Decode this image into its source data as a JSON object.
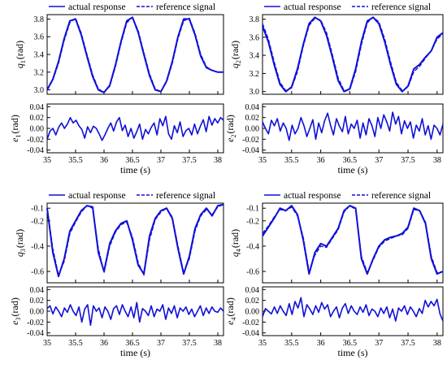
{
  "colors": {
    "series": "#1010d8",
    "frame": "#000000",
    "grid": "#d9d9d9"
  },
  "chart_data": [
    {
      "type": "line",
      "legend": [
        "actual response",
        "reference signal"
      ],
      "ylabel_sym": "q",
      "ylabel_sub": "1",
      "ylabel_unit": "(rad)",
      "xlim": [
        35,
        38.1
      ],
      "ylim": [
        2.95,
        3.85
      ],
      "yticks": [
        "3.0",
        "3.2",
        "3.4",
        "3.6",
        "3.8"
      ],
      "x": [
        35.0,
        35.1,
        35.2,
        35.3,
        35.4,
        35.5,
        35.6,
        35.7,
        35.8,
        35.9,
        36.0,
        36.1,
        36.2,
        36.3,
        36.4,
        36.5,
        36.6,
        36.7,
        36.8,
        36.9,
        37.0,
        37.1,
        37.2,
        37.3,
        37.4,
        37.5,
        37.6,
        37.7,
        37.8,
        37.9,
        38.0,
        38.1
      ],
      "series": [
        {
          "name": "actual response",
          "values": [
            3.0,
            3.12,
            3.32,
            3.58,
            3.78,
            3.8,
            3.62,
            3.38,
            3.15,
            3.0,
            2.97,
            3.05,
            3.28,
            3.55,
            3.78,
            3.82,
            3.65,
            3.4,
            3.16,
            3.0,
            2.98,
            3.1,
            3.32,
            3.6,
            3.8,
            3.8,
            3.62,
            3.38,
            3.25,
            3.22,
            3.2,
            3.2
          ]
        },
        {
          "name": "reference signal",
          "values": [
            3.0,
            3.11,
            3.3,
            3.56,
            3.76,
            3.81,
            3.64,
            3.4,
            3.17,
            3.01,
            2.97,
            3.04,
            3.26,
            3.53,
            3.76,
            3.82,
            3.67,
            3.42,
            3.18,
            3.01,
            2.98,
            3.09,
            3.3,
            3.58,
            3.78,
            3.81,
            3.64,
            3.4,
            3.26,
            3.22,
            3.2,
            3.2
          ]
        }
      ],
      "error": {
        "ylabel_sym": "e",
        "ylabel_sub": "1",
        "ylabel_unit": "(rad)",
        "ylim": [
          -0.045,
          0.045
        ],
        "yticks": [
          "0.04",
          "0.02",
          "0.00",
          "-0.02",
          "-0.04"
        ],
        "values": [
          -0.02,
          -0.005,
          0.0,
          -0.012,
          0.002,
          0.01,
          0.0,
          0.008,
          0.02,
          0.01,
          0.015,
          0.005,
          -0.002,
          -0.018,
          0.003,
          -0.008,
          0.004,
          0.0,
          -0.01,
          -0.022,
          -0.012,
          0.0,
          0.01,
          -0.005,
          0.012,
          0.02,
          -0.004,
          0.006,
          -0.015,
          0.0,
          -0.018,
          -0.006,
          0.008,
          -0.02,
          -0.002,
          -0.01,
          0.002,
          0.01,
          -0.012,
          0.018,
          0.005,
          0.022,
          -0.01,
          -0.02,
          0.005,
          -0.008,
          0.012,
          -0.015,
          -0.004,
          0.0,
          -0.012,
          0.008,
          -0.01,
          0.004,
          0.016,
          -0.006,
          0.022,
          0.006,
          0.018,
          0.01,
          0.02,
          0.015
        ]
      },
      "xticks": [
        "35",
        "35.5",
        "36",
        "36.5",
        "37",
        "37.5",
        "38"
      ],
      "xlabel": "time (s)"
    },
    {
      "type": "line",
      "legend": [
        "actual response",
        "reference signal"
      ],
      "ylabel_sym": "q",
      "ylabel_sub": "2",
      "ylabel_unit": "(rad)",
      "xlim": [
        35,
        38.1
      ],
      "ylim": [
        2.97,
        3.85
      ],
      "yticks": [
        "3.0",
        "3.2",
        "3.4",
        "3.6",
        "3.8"
      ],
      "x": [
        35.0,
        35.1,
        35.2,
        35.3,
        35.4,
        35.5,
        35.6,
        35.7,
        35.8,
        35.9,
        36.0,
        36.1,
        36.2,
        36.3,
        36.4,
        36.5,
        36.6,
        36.7,
        36.8,
        36.9,
        37.0,
        37.1,
        37.2,
        37.3,
        37.4,
        37.5,
        37.6,
        37.7,
        37.8,
        37.9,
        38.0,
        38.1
      ],
      "series": [
        {
          "name": "actual response",
          "values": [
            3.72,
            3.55,
            3.3,
            3.08,
            3.0,
            3.05,
            3.25,
            3.52,
            3.75,
            3.82,
            3.78,
            3.62,
            3.38,
            3.12,
            3.0,
            3.03,
            3.25,
            3.55,
            3.78,
            3.82,
            3.75,
            3.55,
            3.3,
            3.08,
            3.0,
            3.06,
            3.25,
            3.3,
            3.38,
            3.45,
            3.6,
            3.65
          ]
        },
        {
          "name": "reference signal",
          "values": [
            3.75,
            3.58,
            3.33,
            3.1,
            3.01,
            3.04,
            3.22,
            3.5,
            3.73,
            3.81,
            3.79,
            3.65,
            3.41,
            3.15,
            3.01,
            3.02,
            3.22,
            3.52,
            3.76,
            3.82,
            3.77,
            3.58,
            3.33,
            3.1,
            3.01,
            3.05,
            3.22,
            3.28,
            3.37,
            3.45,
            3.58,
            3.64
          ]
        }
      ],
      "error": {
        "ylabel_sym": "e",
        "ylabel_sub": "2",
        "ylabel_unit": "(rad)",
        "ylim": [
          -0.045,
          0.045
        ],
        "yticks": [
          "0.04",
          "0.02",
          "0.00",
          "-0.02",
          "-0.04"
        ],
        "values": [
          0.012,
          0.0,
          -0.01,
          0.015,
          0.005,
          0.018,
          -0.005,
          0.01,
          0.0,
          -0.022,
          0.006,
          -0.01,
          0.0,
          0.02,
          0.005,
          -0.015,
          0.0,
          0.016,
          -0.02,
          0.01,
          -0.008,
          0.014,
          0.028,
          0.006,
          -0.012,
          0.018,
          0.004,
          -0.006,
          0.022,
          -0.01,
          0.008,
          0.0,
          0.015,
          -0.018,
          0.01,
          -0.012,
          0.018,
          0.005,
          -0.015,
          0.02,
          0.0,
          0.025,
          0.012,
          -0.005,
          0.03,
          0.008,
          0.022,
          -0.01,
          0.014,
          0.0,
          0.012,
          -0.018,
          0.006,
          -0.005,
          0.018,
          -0.012,
          0.005,
          -0.02,
          0.006,
          0.0,
          -0.012,
          0.008
        ]
      },
      "xticks": [
        "35",
        "35.5",
        "36",
        "36.5",
        "37",
        "37.5",
        "38"
      ],
      "xlabel": "time (s)"
    },
    {
      "type": "line",
      "legend": [
        "actual response",
        "reference signal"
      ],
      "ylabel_sym": "q",
      "ylabel_sub": "3",
      "ylabel_unit": "(rad)",
      "xlim": [
        35,
        38.1
      ],
      "ylim": [
        -0.69,
        -0.06
      ],
      "yticks": [
        "-0.1",
        "-0.2",
        "-0.4",
        "-0.6"
      ],
      "ytickvals": [
        -0.1,
        -0.2,
        -0.4,
        -0.6
      ],
      "x": [
        35.0,
        35.1,
        35.2,
        35.3,
        35.4,
        35.5,
        35.6,
        35.7,
        35.8,
        35.9,
        36.0,
        36.1,
        36.2,
        36.3,
        36.4,
        36.5,
        36.6,
        36.7,
        36.8,
        36.9,
        37.0,
        37.1,
        37.2,
        37.3,
        37.4,
        37.5,
        37.6,
        37.7,
        37.8,
        37.9,
        38.0,
        38.1
      ],
      "series": [
        {
          "name": "actual response",
          "values": [
            -0.1,
            -0.45,
            -0.64,
            -0.5,
            -0.28,
            -0.2,
            -0.12,
            -0.08,
            -0.09,
            -0.45,
            -0.6,
            -0.38,
            -0.28,
            -0.22,
            -0.2,
            -0.35,
            -0.55,
            -0.62,
            -0.32,
            -0.18,
            -0.12,
            -0.1,
            -0.18,
            -0.42,
            -0.62,
            -0.48,
            -0.26,
            -0.15,
            -0.1,
            -0.16,
            -0.08,
            -0.07
          ]
        },
        {
          "name": "reference signal",
          "values": [
            -0.1,
            -0.42,
            -0.63,
            -0.52,
            -0.3,
            -0.21,
            -0.13,
            -0.08,
            -0.1,
            -0.42,
            -0.61,
            -0.4,
            -0.29,
            -0.23,
            -0.21,
            -0.33,
            -0.53,
            -0.63,
            -0.35,
            -0.19,
            -0.13,
            -0.1,
            -0.17,
            -0.4,
            -0.61,
            -0.5,
            -0.28,
            -0.16,
            -0.11,
            -0.15,
            -0.09,
            -0.07
          ]
        }
      ],
      "error": {
        "ylabel_sym": "e",
        "ylabel_sub": "3",
        "ylabel_unit": "(rad)",
        "ylim": [
          -0.045,
          0.045
        ],
        "yticks": [
          "0.04",
          "0.02",
          "0.00",
          "-0.02",
          "-0.04"
        ],
        "values": [
          0.005,
          0.01,
          -0.005,
          0.008,
          0.0,
          -0.01,
          0.006,
          -0.002,
          0.012,
          0.0,
          -0.008,
          0.008,
          -0.02,
          0.004,
          0.012,
          -0.026,
          0.01,
          0.0,
          0.006,
          -0.012,
          0.008,
          0.0,
          -0.015,
          0.005,
          0.01,
          -0.006,
          0.012,
          0.0,
          -0.01,
          0.008,
          -0.012,
          0.016,
          -0.02,
          0.005,
          0.0,
          -0.008,
          0.01,
          -0.01,
          0.004,
          0.0,
          0.012,
          -0.015,
          0.006,
          -0.004,
          0.01,
          -0.012,
          0.006,
          0.0,
          0.008,
          -0.006,
          0.004,
          -0.01,
          0.0,
          0.01,
          -0.008,
          0.006,
          -0.004,
          0.008,
          0.0,
          -0.002,
          0.006,
          0.0
        ]
      },
      "xticks": [
        "35",
        "35.5",
        "36",
        "36.5",
        "37",
        "37.5",
        "38"
      ],
      "xlabel": "time (s)"
    },
    {
      "type": "line",
      "legend": [
        "actual response",
        "reference signal"
      ],
      "ylabel_sym": "q",
      "ylabel_sub": "4",
      "ylabel_unit": "(rad)",
      "xlim": [
        35,
        38.1
      ],
      "ylim": [
        -0.69,
        -0.06
      ],
      "yticks": [
        "-0.1",
        "-0.2",
        "-0.4",
        "-0.6"
      ],
      "ytickvals": [
        -0.1,
        -0.2,
        -0.4,
        -0.6
      ],
      "x": [
        35.0,
        35.1,
        35.2,
        35.3,
        35.4,
        35.5,
        35.6,
        35.7,
        35.8,
        35.9,
        36.0,
        36.1,
        36.2,
        36.3,
        36.4,
        36.5,
        36.6,
        36.7,
        36.8,
        36.9,
        37.0,
        37.1,
        37.2,
        37.3,
        37.4,
        37.5,
        37.6,
        37.7,
        37.8,
        37.9,
        38.0,
        38.1
      ],
      "series": [
        {
          "name": "actual response",
          "values": [
            -0.32,
            -0.25,
            -0.18,
            -0.1,
            -0.12,
            -0.08,
            -0.15,
            -0.35,
            -0.62,
            -0.45,
            -0.38,
            -0.4,
            -0.33,
            -0.26,
            -0.12,
            -0.08,
            -0.1,
            -0.5,
            -0.62,
            -0.5,
            -0.4,
            -0.35,
            -0.33,
            -0.32,
            -0.3,
            -0.25,
            -0.1,
            -0.12,
            -0.22,
            -0.5,
            -0.62,
            -0.6
          ]
        },
        {
          "name": "reference signal",
          "values": [
            -0.3,
            -0.24,
            -0.17,
            -0.11,
            -0.12,
            -0.09,
            -0.16,
            -0.33,
            -0.6,
            -0.47,
            -0.4,
            -0.41,
            -0.34,
            -0.27,
            -0.13,
            -0.08,
            -0.11,
            -0.48,
            -0.61,
            -0.51,
            -0.41,
            -0.36,
            -0.34,
            -0.32,
            -0.31,
            -0.26,
            -0.11,
            -0.12,
            -0.21,
            -0.48,
            -0.61,
            -0.6
          ]
        }
      ],
      "error": {
        "ylabel_sym": "e",
        "ylabel_sub": "4",
        "ylabel_unit": "(rad)",
        "ylim": [
          -0.045,
          0.045
        ],
        "yticks": [
          "0.04",
          "0.02",
          "0.00",
          "-0.02",
          "-0.04"
        ],
        "values": [
          -0.01,
          0.005,
          0.0,
          -0.005,
          0.008,
          -0.004,
          0.01,
          0.0,
          -0.008,
          0.014,
          -0.006,
          0.018,
          0.006,
          0.025,
          -0.01,
          0.012,
          0.004,
          -0.006,
          0.01,
          -0.002,
          0.016,
          0.004,
          0.012,
          -0.01,
          0.0,
          0.008,
          -0.012,
          0.006,
          0.014,
          -0.004,
          0.01,
          0.0,
          -0.006,
          0.008,
          -0.002,
          0.012,
          -0.008,
          0.004,
          0.0,
          -0.01,
          0.006,
          -0.004,
          0.008,
          -0.012,
          0.004,
          -0.018,
          0.006,
          0.0,
          0.01,
          -0.006,
          0.008,
          0.0,
          -0.01,
          0.005,
          -0.004,
          0.02,
          0.008,
          0.018,
          0.01,
          0.022,
          -0.005,
          -0.018
        ]
      },
      "xticks": [
        "35",
        "35.5",
        "36",
        "36.5",
        "37",
        "37.5",
        "38"
      ],
      "xlabel": "time (s)"
    }
  ]
}
